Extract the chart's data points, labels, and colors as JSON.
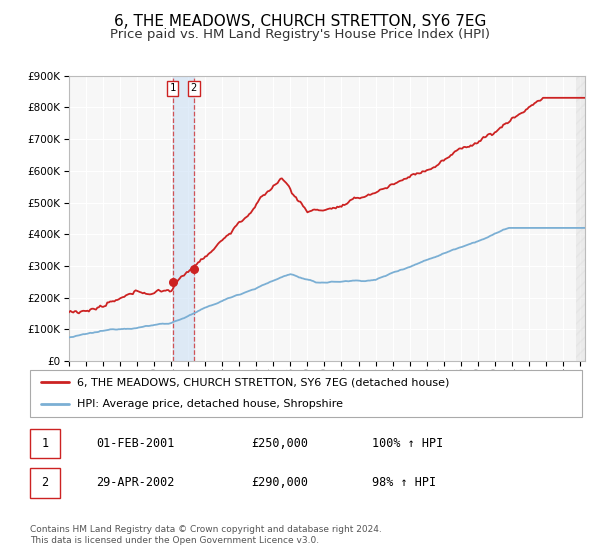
{
  "title": "6, THE MEADOWS, CHURCH STRETTON, SY6 7EG",
  "subtitle": "Price paid vs. HM Land Registry's House Price Index (HPI)",
  "legend_line1": "6, THE MEADOWS, CHURCH STRETTON, SY6 7EG (detached house)",
  "legend_line2": "HPI: Average price, detached house, Shropshire",
  "sale1_date": "01-FEB-2001",
  "sale1_price": 250000,
  "sale1_pct": "100%",
  "sale2_date": "29-APR-2002",
  "sale2_price": 290000,
  "sale2_pct": "98%",
  "copyright_text": "Contains HM Land Registry data © Crown copyright and database right 2024.\nThis data is licensed under the Open Government Licence v3.0.",
  "hpi_color": "#7bafd4",
  "price_color": "#cc2222",
  "sale_dot_color": "#cc2222",
  "background_color": "#ffffff",
  "plot_bg_color": "#f7f7f7",
  "grid_color": "#ffffff",
  "shade_color": "#cce0f5",
  "ylim": [
    0,
    900000
  ],
  "xlim_start": 1995.0,
  "xlim_end": 2025.3,
  "sale1_x": 2001.08,
  "sale2_x": 2002.33,
  "sale1_y": 250000,
  "sale2_y": 290000,
  "title_fontsize": 11,
  "subtitle_fontsize": 9.5,
  "tick_fontsize": 7.5
}
